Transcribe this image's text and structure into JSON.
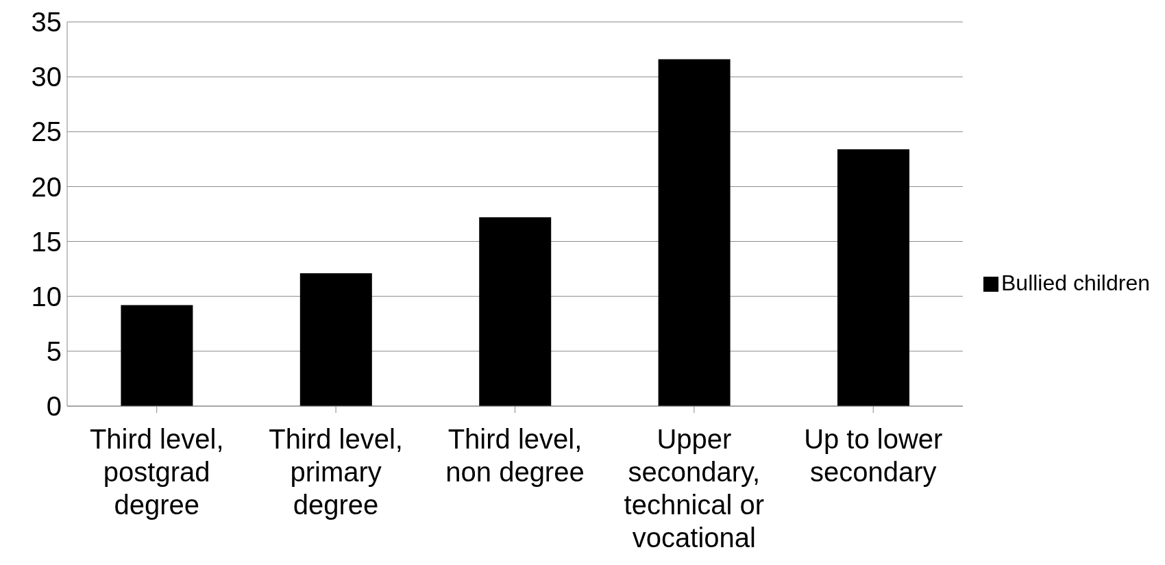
{
  "chart_data": {
    "type": "bar",
    "categories": [
      "Third level, postgrad degree",
      "Third level, primary degree",
      "Third level, non degree",
      "Upper secondary, technical or vocational",
      "Up to lower secondary"
    ],
    "series": [
      {
        "name": "Bullied children",
        "color": "#000000",
        "values": [
          9.2,
          12.1,
          17.2,
          31.6,
          23.4
        ]
      }
    ],
    "ylim": [
      0,
      35
    ],
    "yticks": [
      0,
      5,
      10,
      15,
      20,
      25,
      30,
      35
    ],
    "grid": "y",
    "legend": "right"
  }
}
